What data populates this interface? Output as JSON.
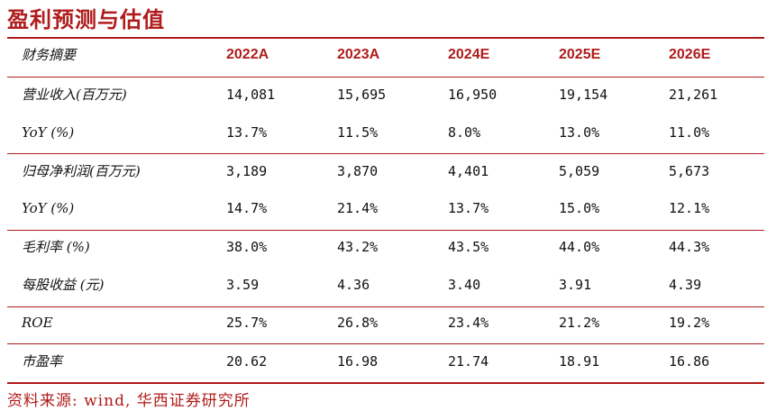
{
  "title": "盈利预测与估值",
  "header": {
    "label": "财务摘要",
    "years": [
      "2022A",
      "2023A",
      "2024E",
      "2025E",
      "2026E"
    ]
  },
  "rows": [
    {
      "label": "营业收入(百万元)",
      "values": [
        "14,081",
        "15,695",
        "16,950",
        "19,154",
        "21,261"
      ]
    },
    {
      "label": "YoY (%)",
      "values": [
        "13.7%",
        "11.5%",
        "8.0%",
        "13.0%",
        "11.0%"
      ]
    },
    {
      "label": "归母净利润(百万元)",
      "values": [
        "3,189",
        "3,870",
        "4,401",
        "5,059",
        "5,673"
      ]
    },
    {
      "label": "YoY (%)",
      "values": [
        "14.7%",
        "21.4%",
        "13.7%",
        "15.0%",
        "12.1%"
      ]
    },
    {
      "label": "毛利率 (%)",
      "values": [
        "38.0%",
        "43.2%",
        "43.5%",
        "44.0%",
        "44.3%"
      ]
    },
    {
      "label": "每股收益 (元)",
      "values": [
        "3.59",
        "4.36",
        "3.40",
        "3.91",
        "4.39"
      ]
    },
    {
      "label": "ROE",
      "values": [
        "25.7%",
        "26.8%",
        "23.4%",
        "21.2%",
        "19.2%"
      ]
    },
    {
      "label": "市盈率",
      "values": [
        "20.62",
        "16.98",
        "21.74",
        "18.91",
        "16.86"
      ]
    }
  ],
  "source": "资料来源: wind, 华西证券研究所",
  "colors": {
    "accent": "#b01b1b",
    "text": "#111111"
  }
}
